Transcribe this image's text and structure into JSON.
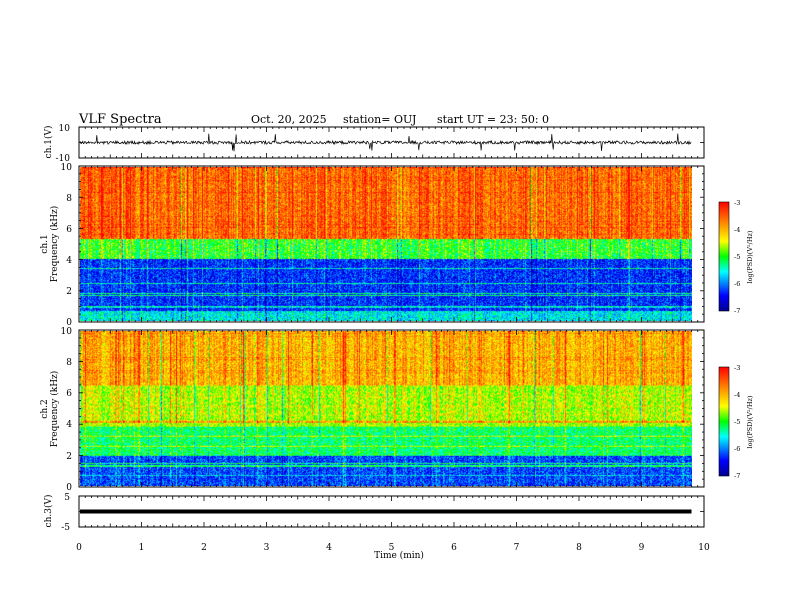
{
  "header": {
    "title": "VLF Spectra",
    "date": "Oct. 20, 2025",
    "station": "station= OUJ",
    "start": "start  UT  =   23: 50: 0"
  },
  "chart_data": [
    {
      "type": "line",
      "panel": "ch1-waveform",
      "ylabel": "ch.1(V)",
      "ylim": [
        -10,
        10
      ],
      "yticks": [
        "10",
        "-10"
      ],
      "xlim": [
        0,
        10
      ],
      "baseline": 0,
      "noise_amplitude": 2,
      "spike_amplitude": 6,
      "data_end": 9.8
    },
    {
      "type": "heatmap",
      "panel": "ch1-spectrogram",
      "ylabel_line1": "ch.1",
      "ylabel_line2": "Frequency (kHz)",
      "ylim": [
        0,
        10
      ],
      "yticks": [
        "0",
        "2",
        "4",
        "6",
        "8",
        "10"
      ],
      "xlim": [
        0,
        10
      ],
      "data_end": 9.8,
      "value_range": [
        -7,
        -3
      ],
      "level_by_band": [
        {
          "f": [
            0,
            0.6
          ],
          "level": -5.6
        },
        {
          "f": [
            0.6,
            4
          ],
          "level": -6.3
        },
        {
          "f": [
            4,
            5.3
          ],
          "level": -5.0
        },
        {
          "f": [
            5.3,
            10
          ],
          "level": -3.6
        }
      ],
      "colorbar": {
        "label": "log(PSD)(V²/Hz)",
        "ticks": [
          "-3",
          "-4",
          "-5",
          "-6",
          "-7"
        ]
      }
    },
    {
      "type": "heatmap",
      "panel": "ch2-spectrogram",
      "ylabel_line1": "ch.2",
      "ylabel_line2": "Frequency (kHz)",
      "ylim": [
        0,
        10
      ],
      "yticks": [
        "0",
        "2",
        "4",
        "6",
        "8",
        "10"
      ],
      "xlim": [
        0,
        10
      ],
      "data_end": 9.8,
      "value_range": [
        -7,
        -3
      ],
      "level_by_band": [
        {
          "f": [
            0,
            2
          ],
          "level": -6.2
        },
        {
          "f": [
            2,
            3.8
          ],
          "level": -5.2
        },
        {
          "f": [
            3.8,
            6.5
          ],
          "level": -4.6
        },
        {
          "f": [
            6.5,
            10
          ],
          "level": -4.0
        }
      ],
      "colorbar": {
        "label": "log(PSD)(V²/Hz)",
        "ticks": [
          "-3",
          "-4",
          "-5",
          "-6",
          "-7"
        ]
      }
    },
    {
      "type": "line",
      "panel": "ch3-waveform",
      "ylabel": "ch.3(V)",
      "ylim": [
        -5,
        5
      ],
      "yticks": [
        "5",
        "-5"
      ],
      "xlim": [
        0,
        10
      ],
      "baseline": 0,
      "data_end": 9.8
    }
  ],
  "xaxis": {
    "label": "Time (min)",
    "ticks": [
      "0",
      "1",
      "2",
      "3",
      "4",
      "5",
      "6",
      "7",
      "8",
      "9",
      "10"
    ]
  },
  "colors": {
    "colormap": [
      "#00008f",
      "#0000ff",
      "#00ffff",
      "#00ff00",
      "#ffff00",
      "#ff8000",
      "#ff0000"
    ],
    "trace": "#000000"
  }
}
